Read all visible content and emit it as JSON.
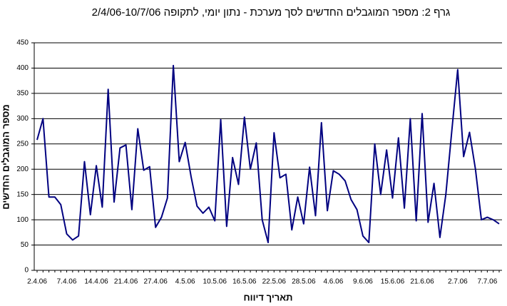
{
  "chart_data": {
    "type": "line",
    "title": "גרף 2: מספר המוגבלים החדשים לסך מערכת - נתון יומי, לתקופה 2/4/06-10/7/06",
    "x_label": "תאריך דיווח",
    "y_label": "מספר המוגבלים החדשים",
    "categories": [
      "2.4.06",
      null,
      null,
      null,
      null,
      "7.4.06",
      null,
      null,
      null,
      null,
      "14.4.06",
      null,
      null,
      null,
      null,
      "21.4.06",
      null,
      null,
      null,
      null,
      "27.4.06",
      null,
      null,
      null,
      null,
      "4.5.06",
      null,
      null,
      null,
      null,
      "10.5.06",
      null,
      null,
      null,
      null,
      "16.5.06",
      null,
      null,
      null,
      null,
      "22.5.06",
      null,
      null,
      null,
      null,
      "28.5.06",
      null,
      null,
      null,
      null,
      "4.6.06",
      null,
      null,
      null,
      null,
      "9.6.06",
      null,
      null,
      null,
      null,
      "15.6.06",
      null,
      null,
      null,
      null,
      "21.6.06",
      null,
      null,
      null,
      null,
      null,
      "2.7.06",
      null,
      null,
      null,
      null,
      "7.7.06",
      null,
      null
    ],
    "values": [
      258,
      300,
      145,
      145,
      130,
      72,
      60,
      68,
      215,
      110,
      207,
      125,
      358,
      135,
      242,
      248,
      120,
      280,
      198,
      205,
      85,
      105,
      143,
      405,
      215,
      253,
      185,
      127,
      113,
      125,
      98,
      298,
      87,
      223,
      170,
      303,
      200,
      252,
      100,
      55,
      272,
      183,
      190,
      80,
      145,
      92,
      204,
      108,
      292,
      118,
      197,
      190,
      177,
      140,
      120,
      68,
      55,
      250,
      150,
      238,
      143,
      262,
      123,
      300,
      98,
      310,
      95,
      172,
      65,
      150,
      275,
      397,
      225,
      273,
      200,
      100,
      105,
      100,
      92
    ],
    "color": "#000080",
    "ylim": [
      0,
      450
    ],
    "yticks": [
      0,
      50,
      100,
      150,
      200,
      250,
      300,
      350,
      400,
      450
    ],
    "grid": true
  }
}
